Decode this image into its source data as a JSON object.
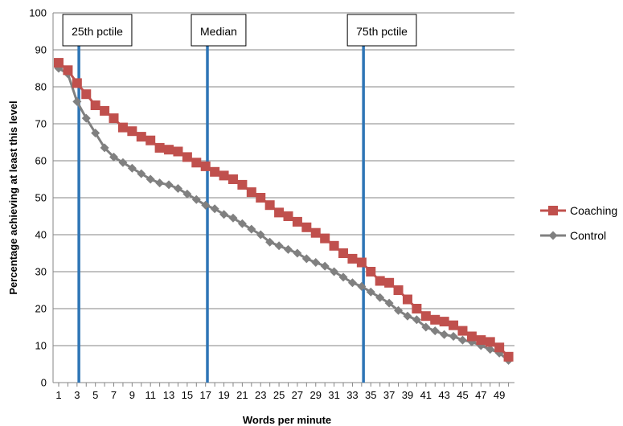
{
  "chart_data": {
    "type": "line",
    "xlabel": "Words per minute",
    "ylabel": "Percentage achieving at least this level",
    "xlim": [
      1,
      50
    ],
    "ylim": [
      0,
      100
    ],
    "y_ticks": [
      0,
      10,
      20,
      30,
      40,
      50,
      60,
      70,
      80,
      90,
      100
    ],
    "x_tick_labels": [
      1,
      3,
      5,
      7,
      9,
      11,
      13,
      15,
      17,
      19,
      21,
      23,
      25,
      27,
      29,
      31,
      33,
      35,
      37,
      39,
      41,
      43,
      45,
      47,
      49
    ],
    "grid": "horizontal",
    "legend_placement": "right",
    "x": [
      1,
      2,
      3,
      4,
      5,
      6,
      7,
      8,
      9,
      10,
      11,
      12,
      13,
      14,
      15,
      16,
      17,
      18,
      19,
      20,
      21,
      22,
      23,
      24,
      25,
      26,
      27,
      28,
      29,
      30,
      31,
      32,
      33,
      34,
      35,
      36,
      37,
      38,
      39,
      40,
      41,
      42,
      43,
      44,
      45,
      46,
      47,
      48,
      49,
      50
    ],
    "series": [
      {
        "name": "Coaching",
        "color": "#c0504d",
        "marker": "square",
        "values": [
          86.5,
          84.5,
          81,
          78,
          75,
          73.5,
          71.5,
          69,
          68,
          66.5,
          65.5,
          63.5,
          63,
          62.5,
          61,
          59.5,
          58.5,
          57,
          56,
          55,
          53.5,
          51.5,
          50,
          48,
          46,
          45,
          43.5,
          42,
          40.5,
          39,
          37,
          35,
          33.5,
          32.5,
          30,
          27.5,
          27,
          25,
          22.5,
          20,
          18,
          17,
          16.5,
          15.5,
          14,
          12.5,
          11.5,
          11,
          9.5,
          7
        ]
      },
      {
        "name": "Control",
        "color": "#808080",
        "marker": "diamond",
        "values": [
          85,
          83.5,
          76,
          71.5,
          67.5,
          63.5,
          61,
          59.5,
          58,
          56.5,
          55,
          54,
          53.5,
          52.5,
          51,
          49.5,
          48,
          47,
          45.5,
          44.5,
          43,
          41.5,
          40,
          38,
          37,
          36,
          35,
          33.5,
          32.5,
          31.5,
          30,
          28.5,
          27,
          26,
          24.5,
          23,
          21.5,
          19.5,
          18,
          17,
          15,
          14,
          13,
          12.5,
          11.5,
          11,
          10,
          9,
          8,
          6
        ]
      }
    ],
    "annotations": [
      {
        "x": 3.2,
        "label": "25th pctile",
        "color": "#2e75b6"
      },
      {
        "x": 17.2,
        "label": "Median",
        "color": "#2e75b6"
      },
      {
        "x": 34.2,
        "label": "75th pctile",
        "color": "#2e75b6"
      }
    ]
  }
}
